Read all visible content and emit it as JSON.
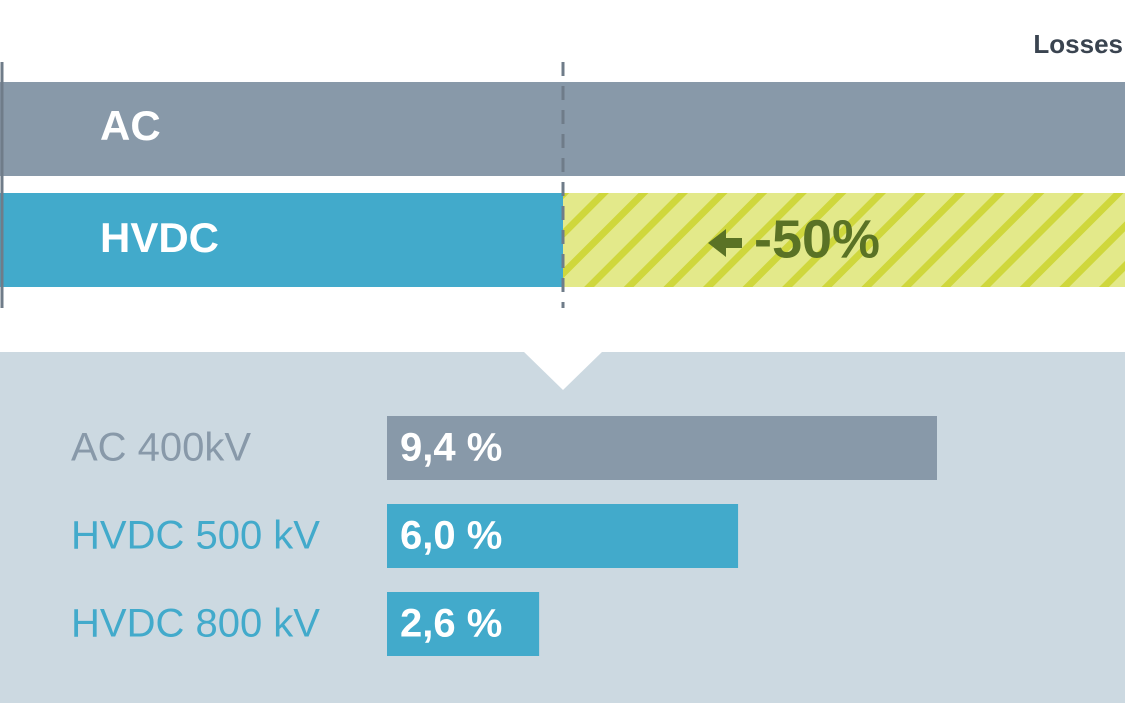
{
  "chart_data": {
    "type": "bar",
    "orientation": "horizontal",
    "comparison": {
      "label": "Losses",
      "categories": [
        "AC",
        "HVDC"
      ],
      "annotation": "-50%"
    },
    "categories": [
      "AC 400kV",
      "HVDC 500 kV",
      "HVDC 800 kV"
    ],
    "values": [
      9.4,
      6.0,
      2.6
    ],
    "value_labels": [
      "9,4 %",
      "6,0 %",
      "2,6 %"
    ],
    "colors": [
      "#8899a9",
      "#42aacb",
      "#42aacb"
    ]
  }
}
